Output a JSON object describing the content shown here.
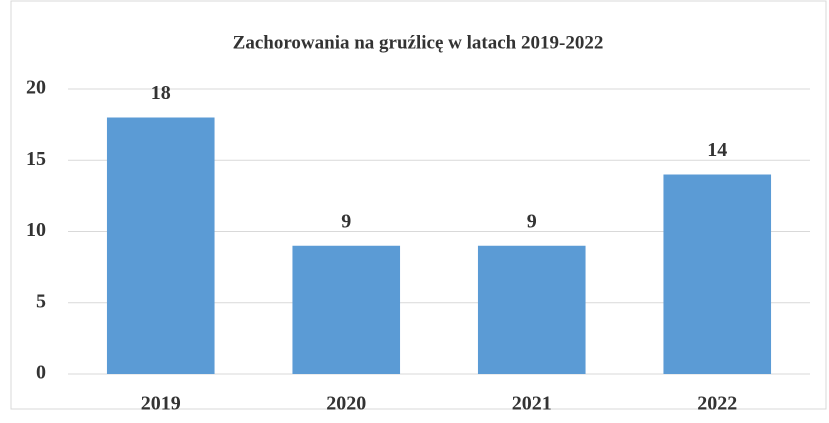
{
  "chart_data": {
    "type": "bar",
    "title": "Zachorowania na gruźlicę w latach 2019-2022",
    "categories": [
      "2019",
      "2020",
      "2021",
      "2022"
    ],
    "values": [
      18,
      9,
      9,
      14
    ],
    "color": "#5b9bd5",
    "ylim": [
      0,
      20
    ],
    "yticks": [
      0,
      5,
      10,
      15,
      20
    ],
    "grid": true
  }
}
